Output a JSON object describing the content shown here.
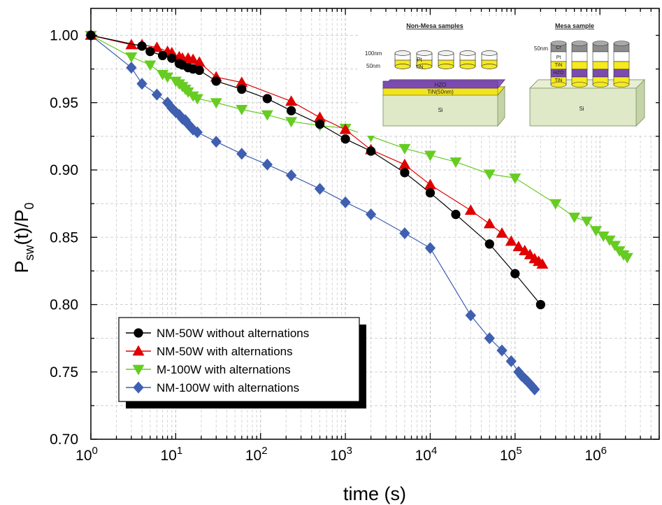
{
  "chart_data": {
    "type": "line",
    "x_scale": "log",
    "xlim": [
      1,
      5000000
    ],
    "ylim": [
      0.7,
      1.02
    ],
    "xlabel": "time (s)",
    "ylabel": "P_sw(t)/P_0",
    "x_ticks": [
      {
        "base": "10",
        "exp": "0",
        "value": 1
      },
      {
        "base": "10",
        "exp": "1",
        "value": 10
      },
      {
        "base": "10",
        "exp": "2",
        "value": 100
      },
      {
        "base": "10",
        "exp": "3",
        "value": 1000
      },
      {
        "base": "10",
        "exp": "4",
        "value": 10000
      },
      {
        "base": "10",
        "exp": "5",
        "value": 100000
      },
      {
        "base": "10",
        "exp": "6",
        "value": 1000000
      }
    ],
    "y_ticks": [
      {
        "label": "0.70",
        "value": 0.7
      },
      {
        "label": "0.75",
        "value": 0.75
      },
      {
        "label": "0.80",
        "value": 0.8
      },
      {
        "label": "0.85",
        "value": 0.85
      },
      {
        "label": "0.90",
        "value": 0.9
      },
      {
        "label": "0.95",
        "value": 0.95
      },
      {
        "label": "1.00",
        "value": 1.0
      }
    ],
    "grid": true,
    "legend_position": "bottom-left",
    "series": [
      {
        "name": "NM-50W without alternations",
        "color": "#000000",
        "marker": "circle",
        "x": [
          1,
          4,
          5,
          7,
          9,
          11,
          12,
          14,
          16,
          19,
          30,
          60,
          120,
          230,
          500,
          1000,
          2000,
          5000,
          10000,
          20000,
          50000,
          100000,
          200000
        ],
        "y": [
          1.0,
          0.992,
          0.988,
          0.985,
          0.983,
          0.979,
          0.978,
          0.976,
          0.975,
          0.974,
          0.966,
          0.96,
          0.953,
          0.944,
          0.934,
          0.923,
          0.914,
          0.898,
          0.883,
          0.867,
          0.845,
          0.823,
          0.8
        ]
      },
      {
        "name": "NM-50W with alternations",
        "color": "#e00000",
        "marker": "triangle-up",
        "x": [
          1,
          3,
          4,
          6,
          8,
          9,
          11,
          12,
          14,
          16,
          19,
          30,
          60,
          230,
          500,
          1000,
          2000,
          5000,
          10000,
          30000,
          50000,
          70000,
          90000,
          110000,
          130000,
          150000,
          170000,
          190000,
          210000
        ],
        "y": [
          1.0,
          0.993,
          0.993,
          0.991,
          0.988,
          0.987,
          0.984,
          0.983,
          0.983,
          0.982,
          0.98,
          0.969,
          0.965,
          0.951,
          0.939,
          0.93,
          0.915,
          0.904,
          0.889,
          0.87,
          0.86,
          0.853,
          0.847,
          0.843,
          0.84,
          0.837,
          0.834,
          0.832,
          0.83
        ]
      },
      {
        "name": "M-100W with alternations",
        "color": "#66cc22",
        "marker": "triangle-down",
        "x": [
          1,
          3,
          5,
          7,
          8,
          10,
          11,
          12,
          13,
          14,
          16,
          18,
          30,
          60,
          120,
          230,
          500,
          1000,
          2000,
          5000,
          10000,
          20000,
          50000,
          100000,
          300000,
          500000,
          700000,
          900000,
          1100000,
          1300000,
          1500000,
          1700000,
          1900000,
          2100000
        ],
        "y": [
          1.0,
          0.984,
          0.978,
          0.971,
          0.969,
          0.966,
          0.964,
          0.962,
          0.96,
          0.958,
          0.955,
          0.953,
          0.95,
          0.945,
          0.941,
          0.936,
          0.933,
          0.931,
          0.925,
          0.916,
          0.911,
          0.906,
          0.897,
          0.894,
          0.875,
          0.865,
          0.862,
          0.855,
          0.851,
          0.848,
          0.844,
          0.84,
          0.837,
          0.835
        ]
      },
      {
        "name": "NM-100W with alternations",
        "color": "#3f5fb0",
        "marker": "diamond",
        "x": [
          1,
          3,
          4,
          6,
          8,
          9,
          10,
          11,
          12,
          13,
          14,
          15,
          16,
          18,
          30,
          60,
          120,
          230,
          500,
          1000,
          2000,
          5000,
          10000,
          30000,
          50000,
          70000,
          90000,
          110000,
          120000,
          130000,
          140000,
          150000,
          160000,
          170000
        ],
        "y": [
          1.0,
          0.976,
          0.964,
          0.956,
          0.95,
          0.946,
          0.943,
          0.941,
          0.938,
          0.937,
          0.934,
          0.932,
          0.93,
          0.928,
          0.921,
          0.912,
          0.904,
          0.896,
          0.886,
          0.876,
          0.867,
          0.853,
          0.842,
          0.792,
          0.775,
          0.766,
          0.758,
          0.75,
          0.747,
          0.745,
          0.743,
          0.741,
          0.739,
          0.737
        ]
      }
    ]
  },
  "inset": {
    "left_title": "Non-Mesa samples",
    "right_title": "Mesa sample",
    "dim_100nm": "100nm",
    "dim_50nm": "50nm",
    "dim_50nm_mesa": "50nm",
    "pt": "Pt",
    "tin": "TiN",
    "hzo": "HZO",
    "tin_bottom": "TiN(50nm)",
    "si": "Si",
    "cr": "Cr"
  }
}
